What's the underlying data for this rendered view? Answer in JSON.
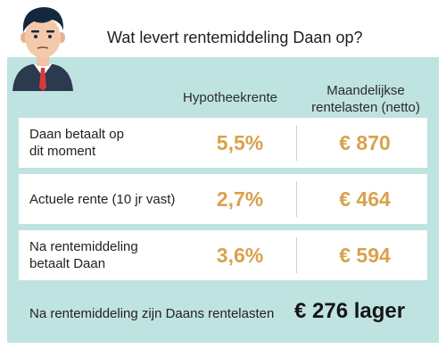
{
  "title": "Wat levert rentemiddeling Daan op?",
  "columns": {
    "rate": "Hypotheekrente",
    "monthly_line1": "Maandelijkse",
    "monthly_line2": "rentelasten (netto)"
  },
  "rows": [
    {
      "label_line1": "Daan betaalt op",
      "label_line2": "dit moment",
      "rate": "5,5%",
      "amount": "€ 870"
    },
    {
      "label_line1": "Actuele rente (10 jr vast)",
      "label_line2": "",
      "rate": "2,7%",
      "amount": "€ 464"
    },
    {
      "label_line1": "Na rentemiddeling",
      "label_line2": "betaalt Daan",
      "rate": "3,6%",
      "amount": "€ 594"
    }
  ],
  "summary": {
    "label": "Na rentemiddeling zijn Daans rentelasten",
    "value": "€ 276 lager"
  },
  "colors": {
    "panel": "#bfe3e1",
    "accent": "#d9a14e"
  },
  "icons": {
    "avatar": "man-with-tie-avatar"
  }
}
